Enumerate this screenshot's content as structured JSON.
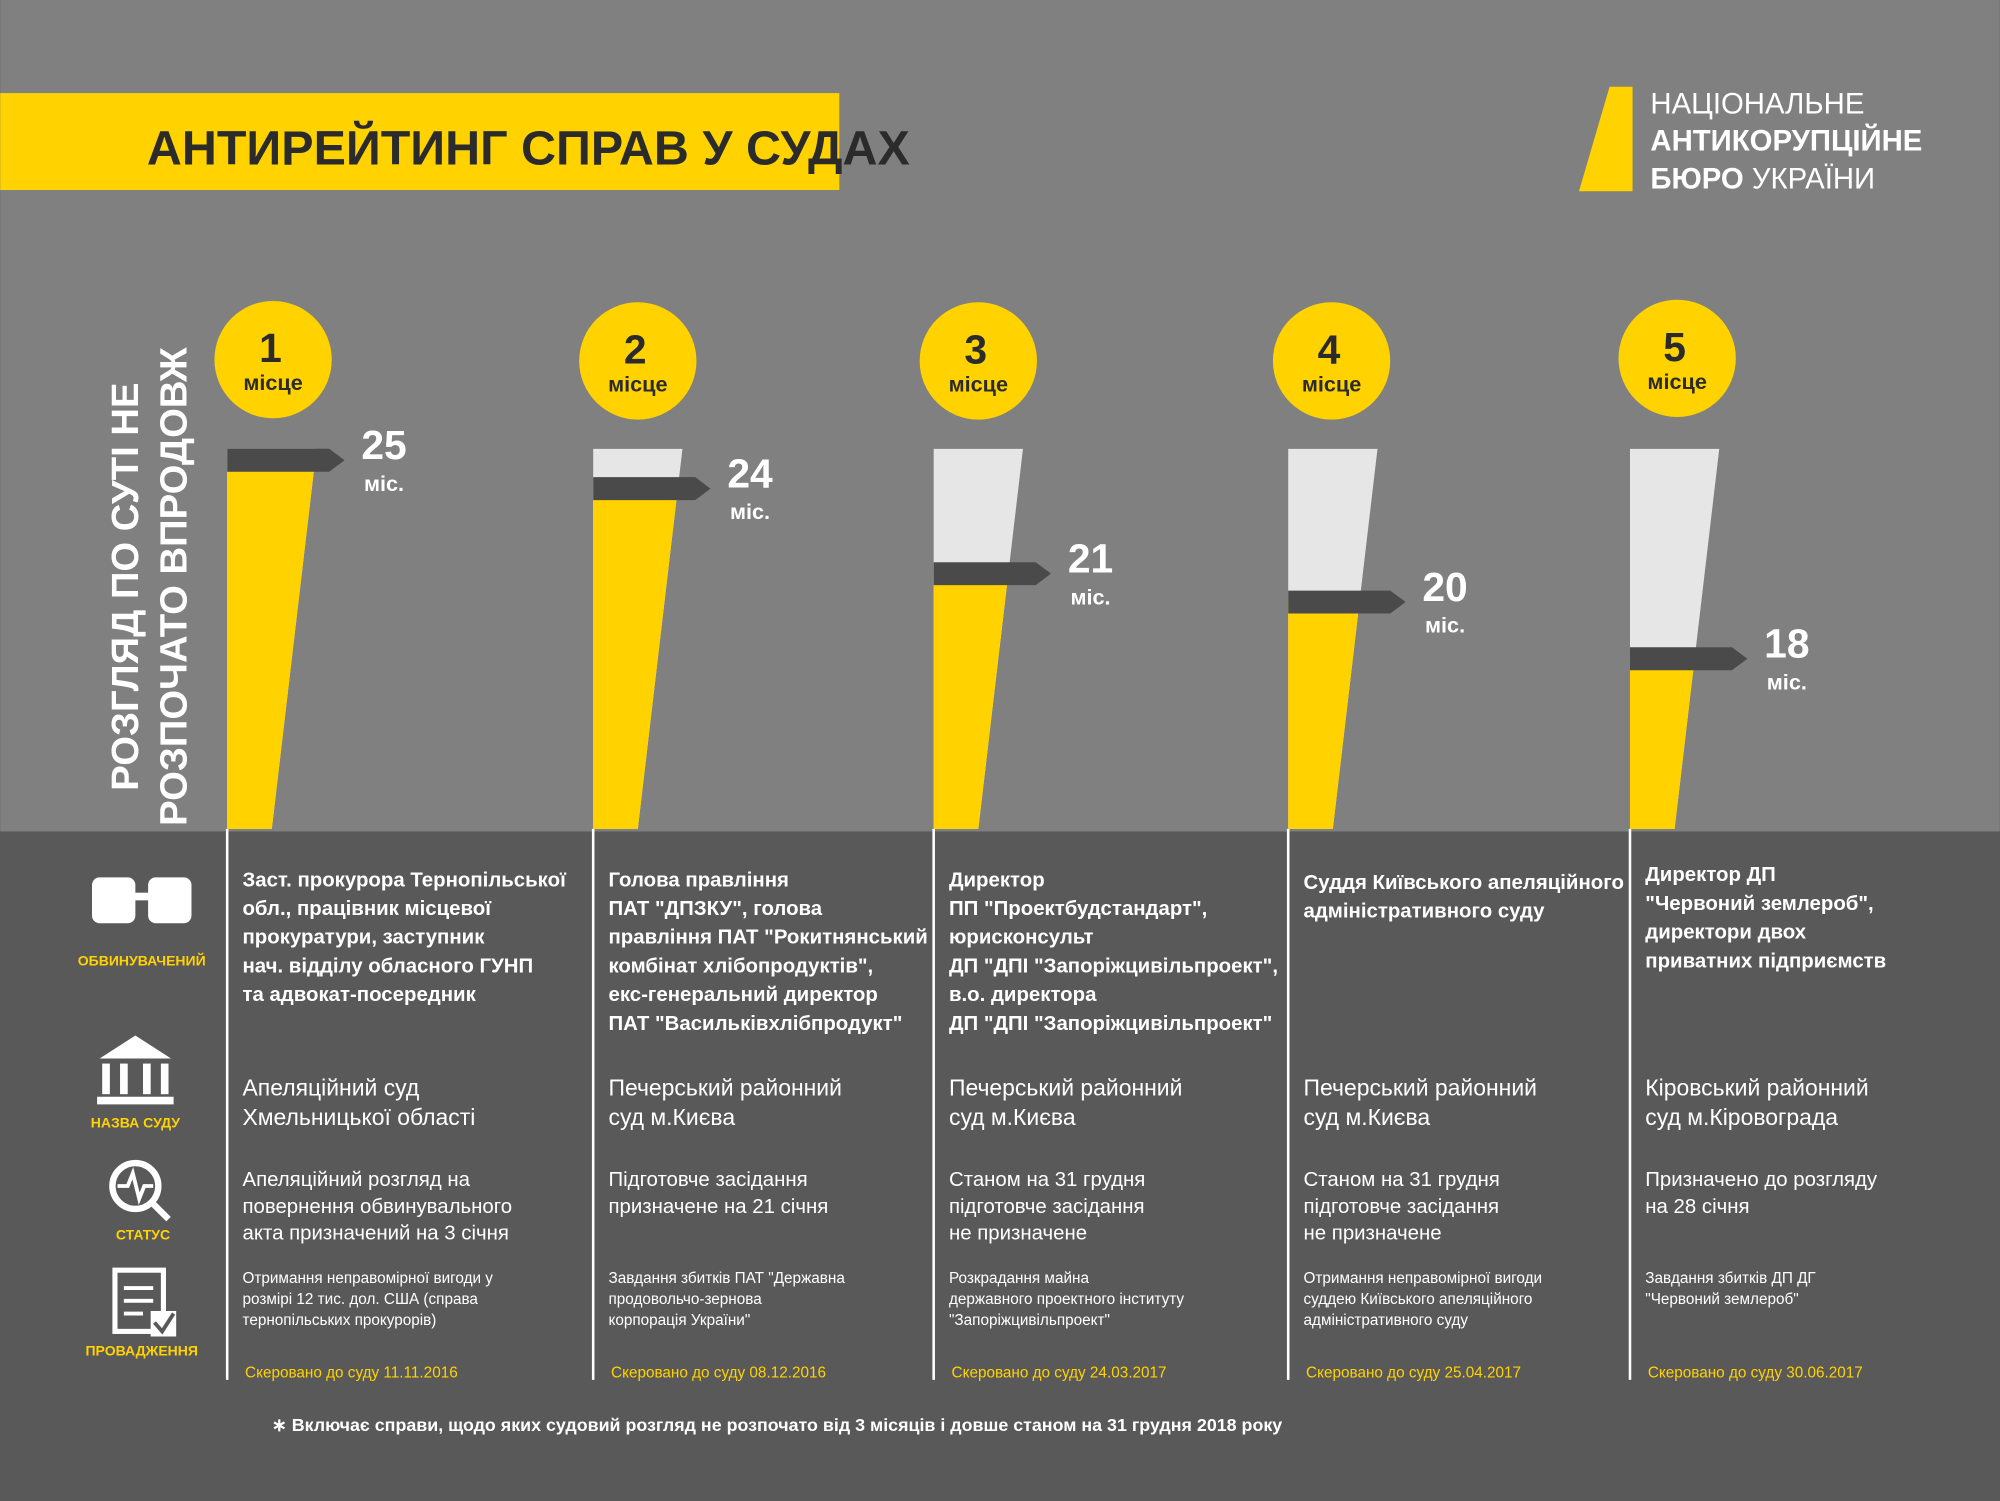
{
  "header": {
    "title": "АНТИРЕЙТИНГ СПРАВ У СУДАХ",
    "logo": [
      "НАЦІОНАЛЬНЕ",
      "АНТИКОРУПЦІЙНЕ",
      "БЮРО",
      "УКРАЇНИ"
    ]
  },
  "chart_data": {
    "type": "bar",
    "y_label": [
      "РОЗГЛЯД ПО СУТІ НЕ",
      "РОЗПОЧАТО ВПРОДОВЖ"
    ],
    "categories": [
      1,
      2,
      3,
      4,
      5
    ],
    "category_label": "місце",
    "values": [
      25,
      24,
      21,
      20,
      18
    ],
    "value_unit": "міс.",
    "ylim": [
      12,
      25.4
    ],
    "color": "#ffd200"
  },
  "row_labels": [
    "ОБВИНУВАЧЕНИЙ",
    "НАЗВА СУДУ",
    "СТАТУС",
    "ПРОВАДЖЕННЯ"
  ],
  "cases": [
    {
      "accused": [
        "Заст. прокурора Тернопільської",
        "обл., працівник місцевої",
        "прокуратури, заступник",
        "нач. відділу обласного ГУНП",
        "та адвокат-посередник"
      ],
      "court": [
        "Апеляційний суд",
        "Хмельницької області"
      ],
      "status": [
        "Апеляційний розгляд на",
        "повернення обвинувального",
        "акта призначений на 3 січня"
      ],
      "proceeding": [
        "Отримання неправомірної вигоди у",
        "розмірі 12 тис. дол. США (справа",
        "тернопільських прокурорів)"
      ],
      "sent": "Скеровано до суду 11.11.2016"
    },
    {
      "accused": [
        "Голова правління",
        "ПАТ \"ДПЗКУ\", голова",
        "правління ПАТ \"Рокитнянський",
        "комбінат хлібопродуктів\",",
        "екс-генеральний директор",
        "ПАТ \"Васильківхлібпродукт\""
      ],
      "court": [
        "Печерський районний",
        "суд м.Києва"
      ],
      "status": [
        "Підготовче засідання",
        "призначене на 21 січня"
      ],
      "proceeding": [
        "Завдання збитків ПАТ \"Державна",
        "продовольчо-зернова",
        "корпорація України\""
      ],
      "sent": "Скеровано до суду 08.12.2016"
    },
    {
      "accused": [
        "Директор",
        "ПП \"Проектбудстандарт\",",
        "юрисконсульт",
        "ДП \"ДПІ \"Запоріжцивільпроект\",",
        "в.о. директора",
        "ДП \"ДПІ \"Запоріжцивільпроект\""
      ],
      "court": [
        "Печерський районний",
        "суд м.Києва"
      ],
      "status": [
        "Станом на 31 грудня",
        "підготовче засідання",
        "не призначене"
      ],
      "proceeding": [
        "Розкрадання майна",
        "державного проектного інституту",
        "\"Запоріжцивільпроект\""
      ],
      "sent": "Скеровано до суду 24.03.2017"
    },
    {
      "accused": [
        "Суддя Київського апеляційного",
        "адміністративного суду"
      ],
      "court": [
        "Печерський районний",
        "суд м.Києва"
      ],
      "status": [
        "Станом на 31 грудня",
        "підготовче засідання",
        "не призначене"
      ],
      "proceeding": [
        "Отримання неправомірної вигоди",
        "суддею Київського апеляційного",
        "адміністративного суду"
      ],
      "sent": "Скеровано до суду 25.04.2017"
    },
    {
      "accused": [
        "Директор ДП",
        "\"Червоний землероб\",",
        "директори двох",
        "приватних підприємств"
      ],
      "court": [
        "Кіровський районний",
        "суд м.Кіровограда"
      ],
      "status": [
        "Призначено до розгляду",
        "на 28 січня"
      ],
      "proceeding": [
        "Завдання збитків ДП ДГ",
        "\"Червоний землероб\""
      ],
      "sent": "Скеровано до суду 30.06.2017"
    }
  ],
  "footnote": "∗  Включає справи, щодо яких судовий розгляд не розпочато від 3 місяців і довше станом на 31 грудня 2018 року"
}
